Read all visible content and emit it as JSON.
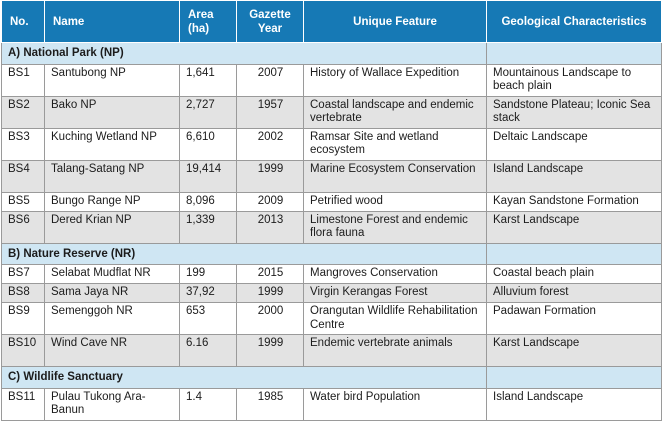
{
  "headers": {
    "no": "No.",
    "name": "Name",
    "area": "Area (ha)",
    "year": "Gazette Year",
    "feature": "Unique Feature",
    "geology": "Geological Characteristics"
  },
  "sections": {
    "np": "A) National Park (NP)",
    "nr": "B) Nature Reserve (NR)",
    "ws": "C) Wildlife Sanctuary"
  },
  "rows": [
    {
      "no": "BS1",
      "name": "Santubong NP",
      "area": "1,641",
      "year": "2007",
      "feature": "History of Wallace Expedition",
      "geology": "Mountainous Landscape to beach plain"
    },
    {
      "no": "BS2",
      "name": "Bako NP",
      "area": "2,727",
      "year": "1957",
      "feature": "Coastal landscape and endemic vertebrate",
      "geology": "Sandstone Plateau; Iconic Sea stack"
    },
    {
      "no": "BS3",
      "name": "Kuching Wetland NP",
      "area": "6,610",
      "year": "2002",
      "feature": "Ramsar Site and wetland ecosystem",
      "geology": "Deltaic Landscape"
    },
    {
      "no": "BS4",
      "name": "Talang-Satang NP",
      "area": "19,414",
      "year": "1999",
      "feature": "Marine Ecosystem Conservation",
      "geology": "Island Landscape"
    },
    {
      "no": "BS5",
      "name": "Bungo Range NP",
      "area": "8,096",
      "year": "2009",
      "feature": "Petrified wood",
      "geology": "Kayan Sandstone Formation"
    },
    {
      "no": "BS6",
      "name": "Dered Krian NP",
      "area": "1,339",
      "year": "2013",
      "feature": "Limestone Forest and endemic flora fauna",
      "geology": "Karst Landscape"
    },
    {
      "no": "BS7",
      "name": "Selabat Mudflat NR",
      "area": "199",
      "year": "2015",
      "feature": "Mangroves Conservation",
      "geology": "Coastal beach plain"
    },
    {
      "no": "BS8",
      "name": "Sama Jaya NR",
      "area": "37,92",
      "year": "1999",
      "feature": "Virgin Kerangas Forest",
      "geology": "Alluvium forest"
    },
    {
      "no": "BS9",
      "name": "Semenggoh NR",
      "area": "653",
      "year": "2000",
      "feature": "Orangutan Wildlife Rehabilitation Centre",
      "geology": "Padawan Formation"
    },
    {
      "no": "BS10",
      "name": "Wind Cave NR",
      "area": "6.16",
      "year": "1999",
      "feature": "Endemic vertebrate animals",
      "geology": " Karst Landscape"
    },
    {
      "no": "BS11",
      "name": "Pulau Tukong Ara-Banun",
      "area": "1.4",
      "year": "1985",
      "feature": "Water bird Population",
      "geology": "Island Landscape"
    }
  ],
  "colors": {
    "header_bg": "#1679b5",
    "section_bg": "#cfe6f3",
    "alt_row_bg": "#e3e3e3",
    "border": "#9a9a9a"
  }
}
